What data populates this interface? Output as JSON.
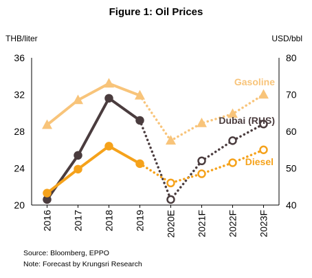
{
  "chart_data": {
    "type": "line",
    "title": "Figure 1: Oil Prices",
    "left_axis_label": "THB/liter",
    "right_axis_label": "USD/bbl",
    "categories": [
      "2016",
      "2017",
      "2018",
      "2019",
      "2020E",
      "2021F",
      "2022F",
      "2023F"
    ],
    "left_ylim": [
      20,
      36
    ],
    "left_ticks": [
      "20",
      "24",
      "28",
      "32",
      "36"
    ],
    "right_ylim": [
      40,
      80
    ],
    "right_ticks": [
      "40",
      "50",
      "60",
      "70",
      "80"
    ],
    "forecast_start_index": 3,
    "series": [
      {
        "name": "Gasoline",
        "axis": "left",
        "color": "#F8C47A",
        "marker": "triangle",
        "values": [
          28.7,
          31.4,
          33.2,
          31.9,
          27.0,
          28.9,
          29.9,
          32.0
        ]
      },
      {
        "name": "Dubai (RHS)",
        "axis": "right",
        "color": "#4A3C3E",
        "marker": "circle",
        "values": [
          41.5,
          53.5,
          69.0,
          63.0,
          41.5,
          52.0,
          57.5,
          62.0
        ]
      },
      {
        "name": "Diesel",
        "axis": "left",
        "color": "#F5A21B",
        "marker": "circle",
        "values": [
          21.3,
          23.9,
          26.4,
          24.5,
          22.4,
          23.4,
          24.6,
          26.0
        ]
      }
    ],
    "grid": false
  },
  "footnotes": {
    "source": "Source: Bloomberg, EPPO",
    "note": "Note: Forecast by Krungsri Research"
  }
}
